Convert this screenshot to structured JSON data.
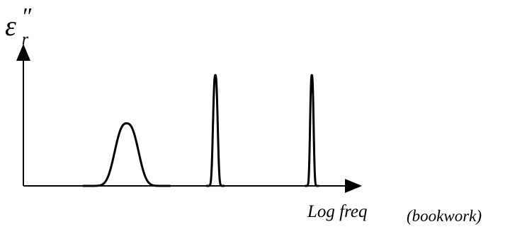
{
  "chart_data": {
    "type": "line",
    "title": "",
    "ylabel": "ε",
    "ylabel_subscript": "r",
    "ylabel_superscript": "″",
    "xlabel": "Log freq",
    "annotation": "(bookwork)",
    "ylim": [
      0,
      1
    ],
    "xlim": [
      0,
      1
    ],
    "grid": false,
    "ticks": false,
    "series": [
      {
        "peaks": [
          {
            "center": 0.305,
            "height": 0.44,
            "width": 0.04
          },
          {
            "center": 0.567,
            "height": 0.78,
            "width": 0.008
          },
          {
            "center": 0.852,
            "height": 0.78,
            "width": 0.006
          }
        ]
      }
    ]
  }
}
